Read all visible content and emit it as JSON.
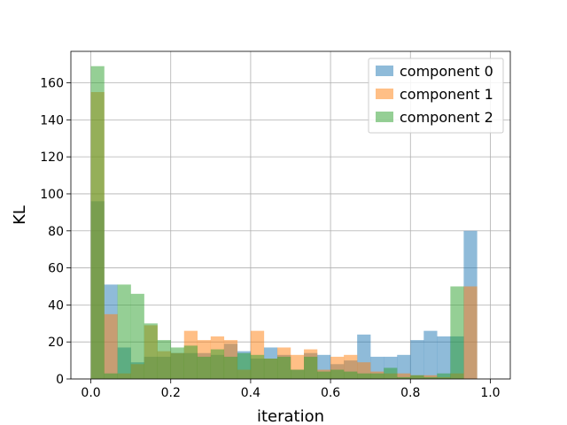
{
  "chart_data": {
    "type": "histogram",
    "xlabel": "iteration",
    "ylabel": "KL",
    "xlim": [
      -0.05,
      1.05
    ],
    "ylim": [
      0,
      177
    ],
    "xticks": [
      0.0,
      0.2,
      0.4,
      0.6,
      0.8,
      1.0
    ],
    "xtick_labels": [
      "0.0",
      "0.2",
      "0.4",
      "0.6",
      "0.8",
      "1.0"
    ],
    "yticks": [
      0,
      20,
      40,
      60,
      80,
      100,
      120,
      140,
      160
    ],
    "ytick_labels": [
      "0",
      "20",
      "40",
      "60",
      "80",
      "100",
      "120",
      "140",
      "160"
    ],
    "grid": true,
    "legend_position": "top-right",
    "bins": 30,
    "bin_range": [
      0.0,
      1.0
    ],
    "series": [
      {
        "name": "component 0",
        "color": "#1f77b4",
        "alpha": 0.5,
        "values": [
          96,
          51,
          17,
          9,
          12,
          12,
          14,
          14,
          14,
          13,
          19,
          15,
          11,
          17,
          13,
          5,
          14,
          13,
          8,
          10,
          24,
          12,
          12,
          13,
          21,
          26,
          23,
          23,
          80,
          0
        ]
      },
      {
        "name": "component 1",
        "color": "#ff7f0e",
        "alpha": 0.5,
        "values": [
          155,
          35,
          3,
          8,
          29,
          15,
          14,
          26,
          21,
          23,
          21,
          5,
          26,
          11,
          17,
          13,
          16,
          5,
          12,
          13,
          9,
          4,
          3,
          3,
          2,
          2,
          1,
          3,
          50,
          0
        ]
      },
      {
        "name": "component 2",
        "color": "#2ca02c",
        "alpha": 0.5,
        "values": [
          169,
          3,
          51,
          46,
          30,
          21,
          17,
          18,
          12,
          16,
          12,
          14,
          13,
          11,
          12,
          5,
          12,
          4,
          5,
          4,
          3,
          3,
          6,
          1,
          2,
          1,
          3,
          50,
          0,
          0
        ]
      }
    ]
  }
}
